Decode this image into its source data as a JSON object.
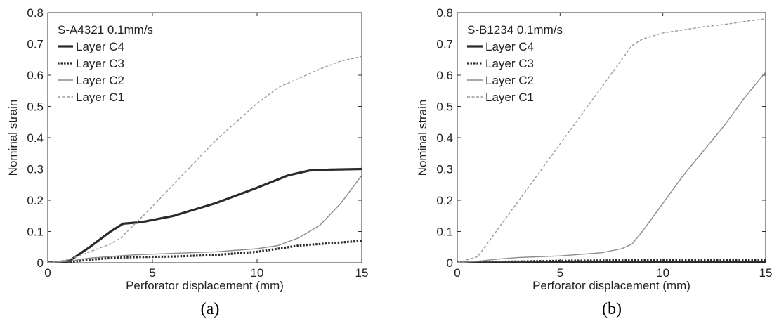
{
  "chart_data": [
    {
      "type": "line",
      "panel_label": "(a)",
      "legend_title": "S-A4321 0.1mm/s",
      "xlabel": "Perforator displacement (mm)",
      "ylabel": "Nominal strain",
      "xlim": [
        0,
        15
      ],
      "ylim": [
        0,
        0.8
      ],
      "xticks": [
        0,
        5,
        10,
        15
      ],
      "yticks": [
        0,
        0.1,
        0.2,
        0.3,
        0.4,
        0.5,
        0.6,
        0.7,
        0.8
      ],
      "ytick_labels": [
        "0",
        "0.1",
        "0.2",
        "0.3",
        "0.4",
        "0.5",
        "0.6",
        "0.7",
        "0.8"
      ],
      "grid": false,
      "legend_position": "top-left",
      "series": [
        {
          "name": "Layer C4",
          "style": "thick-solid",
          "x": [
            0,
            1,
            2,
            3,
            3.6,
            4.5,
            6,
            8,
            10,
            11.5,
            12.5,
            13.5,
            15
          ],
          "y": [
            0,
            0.005,
            0.05,
            0.1,
            0.125,
            0.13,
            0.15,
            0.19,
            0.24,
            0.28,
            0.295,
            0.298,
            0.3
          ]
        },
        {
          "name": "Layer C3",
          "style": "thick-dotted",
          "x": [
            0,
            1,
            2,
            3,
            4,
            6,
            8,
            10,
            11,
            12,
            13,
            14,
            15
          ],
          "y": [
            0,
            0.003,
            0.01,
            0.015,
            0.018,
            0.02,
            0.025,
            0.035,
            0.045,
            0.055,
            0.06,
            0.065,
            0.07
          ]
        },
        {
          "name": "Layer C2",
          "style": "thin-solid",
          "x": [
            0,
            1,
            2,
            3,
            4,
            6,
            8,
            10,
            11,
            12,
            13,
            14,
            15
          ],
          "y": [
            0,
            0.005,
            0.015,
            0.02,
            0.025,
            0.03,
            0.035,
            0.045,
            0.055,
            0.08,
            0.12,
            0.19,
            0.28
          ]
        },
        {
          "name": "Layer C1",
          "style": "thin-dashed",
          "x": [
            0,
            1,
            2,
            3,
            3.5,
            5,
            6,
            7,
            8,
            9,
            10,
            11,
            12,
            13,
            14,
            15
          ],
          "y": [
            0,
            0.01,
            0.035,
            0.06,
            0.08,
            0.18,
            0.25,
            0.32,
            0.39,
            0.45,
            0.51,
            0.56,
            0.59,
            0.62,
            0.645,
            0.66
          ]
        }
      ]
    },
    {
      "type": "line",
      "panel_label": "(b)",
      "legend_title": "S-B1234 0.1mm/s",
      "xlabel": "Perforator displacement (mm)",
      "ylabel": "Nominal strain",
      "xlim": [
        0,
        15
      ],
      "ylim": [
        0,
        0.8
      ],
      "xticks": [
        0,
        5,
        10,
        15
      ],
      "yticks": [
        0,
        0.1,
        0.2,
        0.3,
        0.4,
        0.5,
        0.6,
        0.7,
        0.8
      ],
      "ytick_labels": [
        "0",
        "0.1",
        "0.2",
        "0.3",
        "0.4",
        "0.5",
        "0.6",
        "0.7",
        "0.8"
      ],
      "grid": false,
      "legend_position": "top-left",
      "series": [
        {
          "name": "Layer C4",
          "style": "thick-solid",
          "x": [
            0,
            1,
            5,
            10,
            15
          ],
          "y": [
            0,
            0,
            0.001,
            0.002,
            0.003
          ]
        },
        {
          "name": "Layer C3",
          "style": "thick-dotted",
          "x": [
            0,
            1,
            5,
            10,
            15
          ],
          "y": [
            0,
            0.002,
            0.006,
            0.009,
            0.01
          ]
        },
        {
          "name": "Layer C2",
          "style": "thin-solid",
          "x": [
            0,
            1,
            2,
            3,
            5,
            7,
            8,
            8.5,
            9,
            10,
            11,
            12,
            13,
            14,
            15
          ],
          "y": [
            0,
            0.005,
            0.012,
            0.017,
            0.022,
            0.032,
            0.045,
            0.06,
            0.1,
            0.19,
            0.28,
            0.36,
            0.44,
            0.53,
            0.61
          ]
        },
        {
          "name": "Layer C1",
          "style": "thin-dashed",
          "x": [
            0,
            1,
            2,
            3,
            4,
            5,
            6,
            7,
            8,
            8.5,
            9,
            10,
            11,
            12,
            13,
            14,
            15
          ],
          "y": [
            0,
            0.02,
            0.11,
            0.2,
            0.29,
            0.38,
            0.47,
            0.56,
            0.65,
            0.695,
            0.715,
            0.735,
            0.745,
            0.755,
            0.762,
            0.772,
            0.78
          ]
        }
      ]
    }
  ]
}
